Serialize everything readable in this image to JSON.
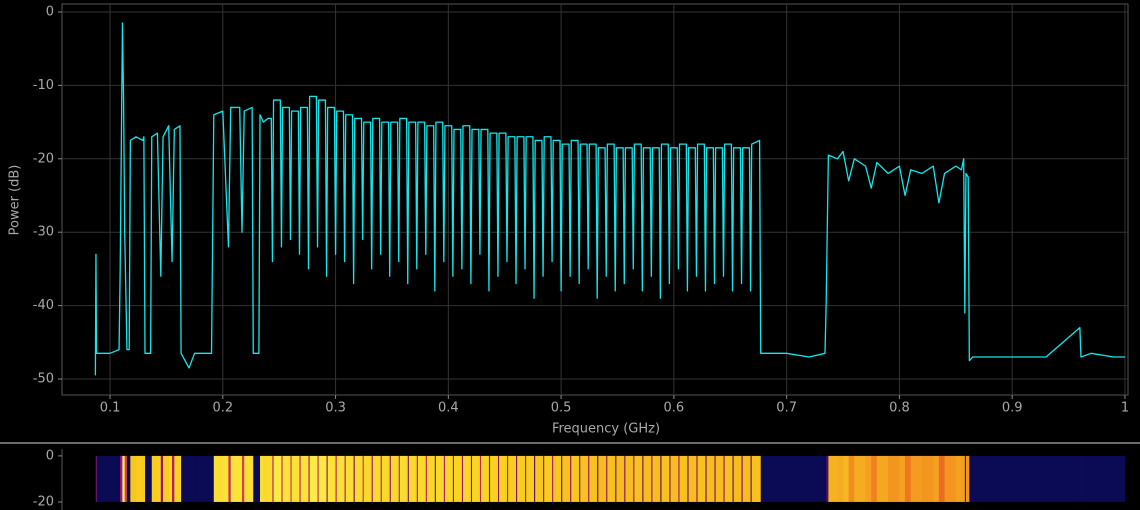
{
  "chart_data": {
    "type": "line",
    "xlabel": "Frequency (GHz)",
    "ylabel": "Power (dB)",
    "color": "#14e6ea",
    "grid": true,
    "xlim": [
      0.0574,
      1.0027
    ],
    "ylim": [
      -52.18,
      1.09
    ],
    "xticks": [
      0.1,
      0.2,
      0.3,
      0.4,
      0.5,
      0.6,
      0.7,
      0.8,
      0.9,
      1
    ],
    "yticks": [
      0,
      -10,
      -20,
      -30,
      -40,
      -50
    ],
    "x": [
      0.087,
      0.0875,
      0.088,
      0.1,
      0.108,
      0.109,
      0.111,
      0.112,
      0.113,
      0.115,
      0.117,
      0.118,
      0.123,
      0.129,
      0.13,
      0.131,
      0.136,
      0.137,
      0.142,
      0.145,
      0.147,
      0.152,
      0.155,
      0.157,
      0.162,
      0.163,
      0.17,
      0.175,
      0.19,
      0.192,
      0.2,
      0.205,
      0.207,
      0.215,
      0.217,
      0.219,
      0.226,
      0.227,
      0.232,
      0.233,
      0.236,
      0.24,
      0.243,
      0.244,
      0.245,
      0.251,
      0.252,
      0.253,
      0.259,
      0.26,
      0.261,
      0.267,
      0.268,
      0.269,
      0.275,
      0.276,
      0.277,
      0.283,
      0.284,
      0.285,
      0.291,
      0.292,
      0.293,
      0.299,
      0.3,
      0.301,
      0.307,
      0.308,
      0.309,
      0.315,
      0.316,
      0.317,
      0.323,
      0.324,
      0.325,
      0.331,
      0.332,
      0.333,
      0.339,
      0.34,
      0.341,
      0.347,
      0.348,
      0.349,
      0.355,
      0.356,
      0.357,
      0.363,
      0.364,
      0.365,
      0.371,
      0.372,
      0.373,
      0.379,
      0.38,
      0.381,
      0.387,
      0.388,
      0.389,
      0.395,
      0.396,
      0.397,
      0.403,
      0.404,
      0.405,
      0.411,
      0.412,
      0.413,
      0.419,
      0.42,
      0.421,
      0.427,
      0.428,
      0.429,
      0.435,
      0.436,
      0.437,
      0.443,
      0.444,
      0.445,
      0.451,
      0.452,
      0.453,
      0.459,
      0.46,
      0.461,
      0.467,
      0.468,
      0.469,
      0.475,
      0.476,
      0.477,
      0.483,
      0.484,
      0.485,
      0.491,
      0.492,
      0.493,
      0.499,
      0.5,
      0.501,
      0.507,
      0.508,
      0.509,
      0.515,
      0.516,
      0.517,
      0.523,
      0.524,
      0.525,
      0.531,
      0.532,
      0.533,
      0.539,
      0.54,
      0.541,
      0.547,
      0.548,
      0.549,
      0.555,
      0.556,
      0.557,
      0.563,
      0.564,
      0.565,
      0.571,
      0.572,
      0.573,
      0.579,
      0.58,
      0.581,
      0.587,
      0.588,
      0.589,
      0.595,
      0.596,
      0.597,
      0.603,
      0.604,
      0.605,
      0.611,
      0.612,
      0.613,
      0.619,
      0.62,
      0.621,
      0.627,
      0.628,
      0.629,
      0.635,
      0.636,
      0.637,
      0.643,
      0.644,
      0.645,
      0.651,
      0.652,
      0.653,
      0.659,
      0.66,
      0.661,
      0.667,
      0.668,
      0.669,
      0.676,
      0.677,
      0.68,
      0.7,
      0.72,
      0.734,
      0.735,
      0.737,
      0.745,
      0.75,
      0.755,
      0.76,
      0.77,
      0.775,
      0.78,
      0.79,
      0.8,
      0.805,
      0.81,
      0.82,
      0.83,
      0.835,
      0.84,
      0.85,
      0.855,
      0.857,
      0.858,
      0.859,
      0.861,
      0.862,
      0.865,
      0.9,
      0.93,
      0.96,
      0.961,
      0.97,
      0.99,
      1.0
    ],
    "values": [
      -49.5,
      -33,
      -46.5,
      -46.5,
      -46,
      -35,
      -1.5,
      -12,
      -30,
      -46,
      -46,
      -17.5,
      -17,
      -17.5,
      -17,
      -46.5,
      -46.5,
      -17,
      -16.5,
      -36,
      -17,
      -15.5,
      -34,
      -16,
      -15.5,
      -46.5,
      -48.5,
      -46.5,
      -46.5,
      -14,
      -13.5,
      -32,
      -13,
      -13,
      -30,
      -13.5,
      -13,
      -46.5,
      -46.5,
      -14,
      -15,
      -14.5,
      -14.5,
      -34,
      -12,
      -12,
      -32,
      -13,
      -13,
      -31,
      -13.5,
      -13.5,
      -33,
      -13,
      -13,
      -35,
      -11.5,
      -11.5,
      -32,
      -12,
      -12,
      -36,
      -13,
      -13,
      -33,
      -13.5,
      -13.5,
      -34,
      -14,
      -14,
      -37,
      -14.5,
      -14.5,
      -31,
      -15,
      -15,
      -35,
      -14.5,
      -14.5,
      -33,
      -15,
      -15,
      -36,
      -15,
      -15,
      -34,
      -14.5,
      -14.5,
      -37,
      -15,
      -15,
      -35,
      -15,
      -15,
      -33,
      -15.5,
      -15.5,
      -38,
      -15,
      -15,
      -34,
      -15.5,
      -15.5,
      -36,
      -16,
      -16,
      -35,
      -15.5,
      -15.5,
      -37,
      -16,
      -16,
      -33,
      -16,
      -16,
      -38,
      -16.5,
      -16.5,
      -36,
      -16.5,
      -16.5,
      -34,
      -17,
      -17,
      -37,
      -17,
      -17,
      -35,
      -17,
      -17,
      -39,
      -17.5,
      -17.5,
      -36,
      -17,
      -17,
      -34,
      -17.5,
      -17.5,
      -38,
      -18,
      -18,
      -36,
      -17.5,
      -17.5,
      -37,
      -18,
      -18,
      -35,
      -18,
      -18,
      -39,
      -18.5,
      -18.5,
      -36,
      -18,
      -18,
      -38,
      -18.5,
      -18.5,
      -37,
      -18.5,
      -18.5,
      -35,
      -18,
      -18,
      -38,
      -18.5,
      -18.5,
      -36,
      -18.5,
      -18.5,
      -39,
      -18,
      -18,
      -37,
      -18.5,
      -18.5,
      -35,
      -18,
      -18,
      -38,
      -18.5,
      -18.5,
      -36,
      -18,
      -18,
      -38,
      -18.5,
      -18.5,
      -37,
      -18.5,
      -18.5,
      -36,
      -18,
      -18,
      -38,
      -18.5,
      -18.5,
      -37,
      -18.5,
      -18.5,
      -38,
      -18,
      -17.5,
      -46.5,
      -46.5,
      -46.5,
      -47,
      -46.5,
      -40,
      -19.5,
      -20,
      -19,
      -23,
      -20,
      -21,
      -24,
      -20.5,
      -22,
      -21,
      -25,
      -21.5,
      -22,
      -21,
      -26,
      -22,
      -21,
      -21.5,
      -20,
      -41,
      -22,
      -22.5,
      -47.5,
      -47,
      -47,
      -47,
      -43,
      -47,
      -46.5,
      -47,
      -47
    ],
    "waterfall": {
      "ylim": [
        -23.5,
        3
      ],
      "yticks": [
        0,
        -20
      ],
      "colormap": [
        "#0a0a55",
        "#0a0a55",
        "#b0186e",
        "#f07020",
        "#f8d020",
        "#ffff60",
        "#ffffd0"
      ]
    }
  }
}
